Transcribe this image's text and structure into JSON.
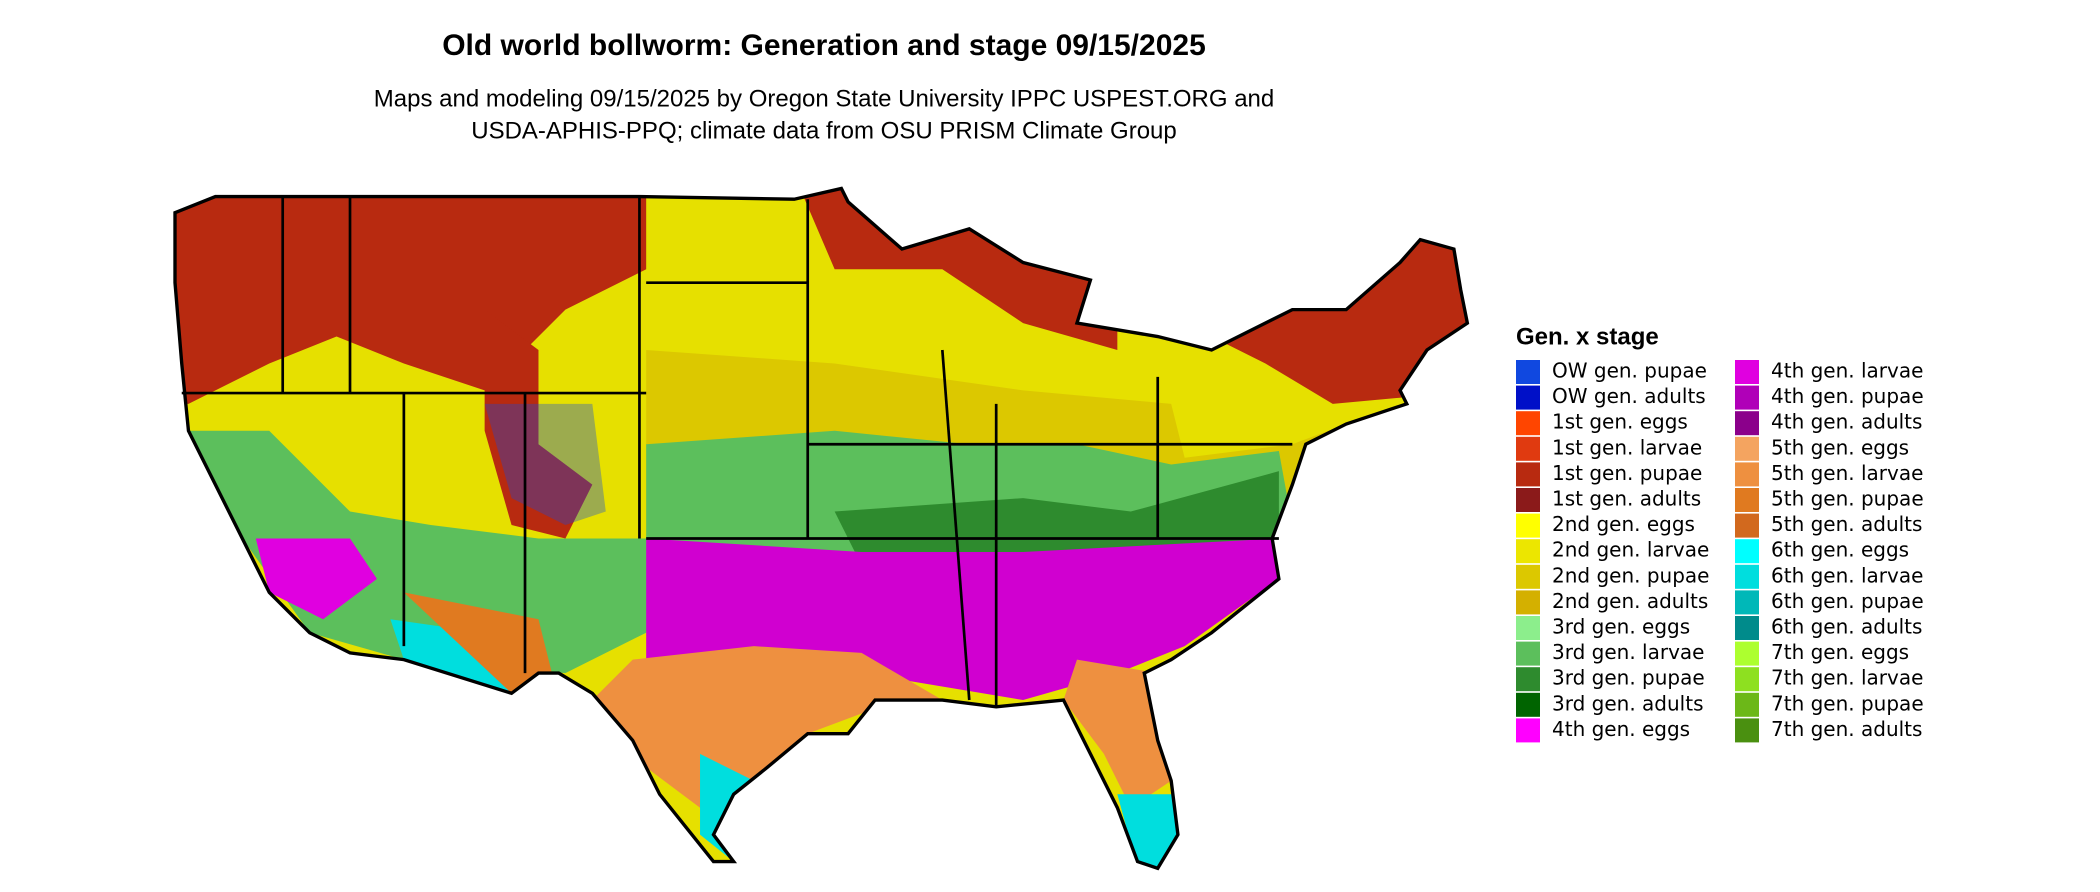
{
  "title": "Old world bollworm: Generation and stage 09/15/2025",
  "subtitle": [
    "Maps and modeling 09/15/2025 by Oregon State University IPPC USPEST.ORG and",
    "USDA-APHIS-PPQ; climate data from OSU PRISM Climate Group"
  ],
  "legend": {
    "title": "Gen. x stage",
    "items": [
      {
        "name": "OW gen. pupae",
        "color": "#1048e0"
      },
      {
        "name": "OW gen. adults",
        "color": "#0010c8"
      },
      {
        "name": "1st gen. eggs",
        "color": "#ff4500"
      },
      {
        "name": "1st gen. larvae",
        "color": "#e03a10"
      },
      {
        "name": "1st gen. pupae",
        "color": "#b82a10"
      },
      {
        "name": "1st gen. adults",
        "color": "#8b1a1a"
      },
      {
        "name": "2nd gen. eggs",
        "color": "#ffff00"
      },
      {
        "name": "2nd gen. larvae",
        "color": "#ece600"
      },
      {
        "name": "2nd gen. pupae",
        "color": "#dcc800"
      },
      {
        "name": "2nd gen. adults",
        "color": "#d4b000"
      },
      {
        "name": "3rd gen. eggs",
        "color": "#8cee8c"
      },
      {
        "name": "3rd gen. larvae",
        "color": "#5cbf5c"
      },
      {
        "name": "3rd gen. pupae",
        "color": "#2e8b2e"
      },
      {
        "name": "3rd gen. adults",
        "color": "#006400"
      },
      {
        "name": "4th gen. eggs",
        "color": "#ff00ff"
      },
      {
        "name": "4th gen. larvae",
        "color": "#e000e0"
      },
      {
        "name": "4th gen. pupae",
        "color": "#b000b8"
      },
      {
        "name": "4th gen. adults",
        "color": "#8b008b"
      },
      {
        "name": "5th gen. eggs",
        "color": "#f4a460"
      },
      {
        "name": "5th gen. larvae",
        "color": "#ee9040"
      },
      {
        "name": "5th gen. pupae",
        "color": "#e07a20"
      },
      {
        "name": "5th gen. adults",
        "color": "#d2691e"
      },
      {
        "name": "6th gen. eggs",
        "color": "#00ffff"
      },
      {
        "name": "6th gen. larvae",
        "color": "#00dede"
      },
      {
        "name": "6th gen. pupae",
        "color": "#00b8b8"
      },
      {
        "name": "6th gen. adults",
        "color": "#008b8b"
      },
      {
        "name": "7th gen. eggs",
        "color": "#adff2f"
      },
      {
        "name": "7th gen. larvae",
        "color": "#8ee020"
      },
      {
        "name": "7th gen. pupae",
        "color": "#6cb818"
      },
      {
        "name": "7th gen. adults",
        "color": "#4a9010"
      }
    ]
  }
}
